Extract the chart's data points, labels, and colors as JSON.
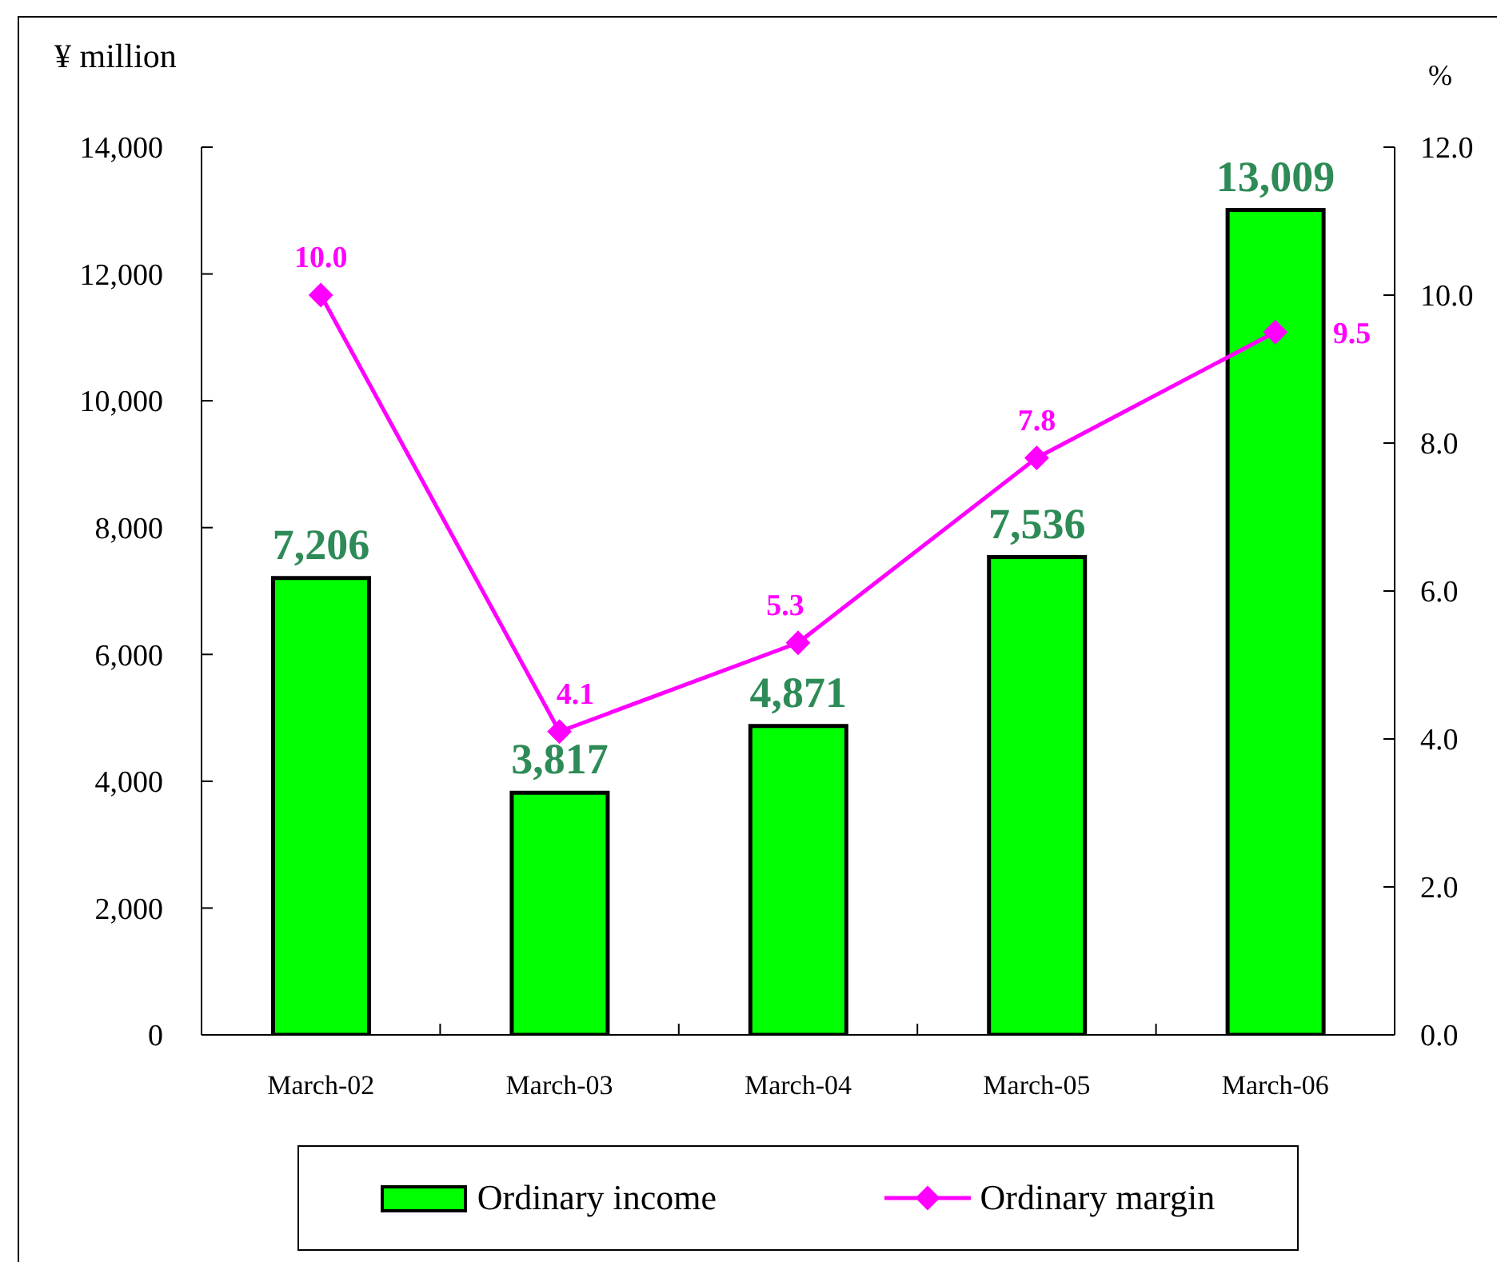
{
  "chart_data": {
    "type": "bar",
    "ylabel": "¥ million",
    "y2label": "%",
    "categories": [
      "March-02",
      "March-03",
      "March-04",
      "March-05",
      "March-06"
    ],
    "series": [
      {
        "name": "Ordinary income",
        "color": "#00ff00",
        "values": [
          7206,
          3817,
          4871,
          7536,
          13009
        ],
        "value_labels": [
          "7,206",
          "3,817",
          "4,871",
          "7,536",
          "13,009"
        ]
      },
      {
        "name": "Ordinary margin",
        "type": "line",
        "axis": "y2",
        "color": "#ff00ff",
        "marker": "diamond",
        "values": [
          10.0,
          4.1,
          5.3,
          7.8,
          9.5
        ],
        "value_labels": [
          "10.0",
          "4.1",
          "5.3",
          "7.8",
          "9.5"
        ]
      }
    ],
    "ylim": [
      0,
      14000
    ],
    "yticks": [
      {
        "value": 0,
        "label": "0"
      },
      {
        "value": 2000,
        "label": "2,000"
      },
      {
        "value": 4000,
        "label": "4,000"
      },
      {
        "value": 6000,
        "label": "6,000"
      },
      {
        "value": 8000,
        "label": "8,000"
      },
      {
        "value": 10000,
        "label": "10,000"
      },
      {
        "value": 12000,
        "label": "12,000"
      },
      {
        "value": 14000,
        "label": "14,000"
      }
    ],
    "y2lim": [
      0,
      12
    ],
    "y2ticks": [
      {
        "value": 0,
        "label": "0.0"
      },
      {
        "value": 2,
        "label": "2.0"
      },
      {
        "value": 4,
        "label": "4.0"
      },
      {
        "value": 6,
        "label": "6.0"
      },
      {
        "value": 8,
        "label": "8.0"
      },
      {
        "value": 10,
        "label": "10.0"
      },
      {
        "value": 12,
        "label": "12.0"
      }
    ],
    "legend": "bottom"
  }
}
